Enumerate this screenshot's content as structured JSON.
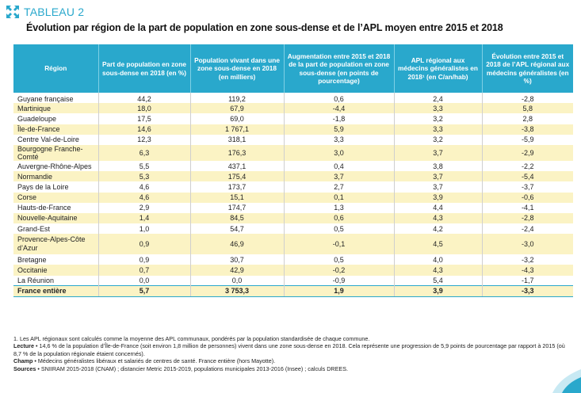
{
  "tag": {
    "label": "TABLEAU 2",
    "icon": "expand-arrows-icon",
    "accent_color": "#29a8cc"
  },
  "title": "Évolution par région de la part de population en zone sous-dense et de l’APL moyen entre 2015 et 2018",
  "table": {
    "headers": [
      "Région",
      "Part de population en zone sous-dense en 2018 (en %)",
      "Population vivant dans une zone sous-dense en 2018 (en milliers)",
      "Augmentation entre 2015 et 2018 de la part de population en zone sous-dense (en points de pourcentage)",
      "APL régional aux médecins généralistes en 2018¹ (en C/an/hab)",
      "Évolution entre 2015 et 2018 de l’APL régional aux médecins généralistes (en %)"
    ],
    "rows": [
      [
        "Guyane française",
        "44,2",
        "119,2",
        "0,6",
        "2,4",
        "-2,8"
      ],
      [
        "Martinique",
        "18,0",
        "67,9",
        "-4,4",
        "3,3",
        "5,8"
      ],
      [
        "Guadeloupe",
        "17,5",
        "69,0",
        "-1,8",
        "3,2",
        "2,8"
      ],
      [
        "Île-de-France",
        "14,6",
        "1 767,1",
        "5,9",
        "3,3",
        "-3,8"
      ],
      [
        "Centre Val-de-Loire",
        "12,3",
        "318,1",
        "3,3",
        "3,2",
        "-5,9"
      ],
      [
        "Bourgogne Franche-Comté",
        "6,3",
        "176,3",
        "3,0",
        "3,7",
        "-2,9"
      ],
      [
        "Auvergne-Rhône-Alpes",
        "5,5",
        "437,1",
        "0,4",
        "3,8",
        "-2,2"
      ],
      [
        "Normandie",
        "5,3",
        "175,4",
        "3,7",
        "3,7",
        "-5,4"
      ],
      [
        "Pays de la Loire",
        "4,6",
        "173,7",
        "2,7",
        "3,7",
        "-3,7"
      ],
      [
        "Corse",
        "4,6",
        "15,1",
        "0,1",
        "3,9",
        "-0,6"
      ],
      [
        "Hauts-de-France",
        "2,9",
        "174,7",
        "1,3",
        "4,4",
        "-4,1"
      ],
      [
        "Nouvelle-Aquitaine",
        "1,4",
        "84,5",
        "0,6",
        "4,3",
        "-2,8"
      ],
      [
        "Grand-Est",
        "1,0",
        "54,7",
        "0,5",
        "4,2",
        "-2,4"
      ],
      [
        "Provence-Alpes-Côte d’Azur",
        "0,9",
        "46,9",
        "-0,1",
        "4,5",
        "-3,0"
      ],
      [
        "Bretagne",
        "0,9",
        "30,7",
        "0,5",
        "4,0",
        "-3,2"
      ],
      [
        "Occitanie",
        "0,7",
        "42,9",
        "-0,2",
        "4,3",
        "-4,3"
      ],
      [
        "La Réunion",
        "0,0",
        "0,0",
        "-0,9",
        "5,4",
        "-1,7"
      ]
    ],
    "total": [
      "France entière",
      "5,7",
      "3 753,3",
      "1,9",
      "3,9",
      "-3,3"
    ]
  },
  "notes": {
    "footnote": "1. Les APL régionaux sont calculés comme la moyenne des APL communaux, pondérés par la population standardisée de chaque commune.",
    "lecture_label": "Lecture",
    "lecture_text": "14,6 % de la population d’Île-de-France (soit environ 1,8 million de personnes) vivent dans une zone sous-dense en 2018. Cela représente une progression de 5,9 points de pourcentage par rapport à 2015 (où 8,7 % de la population régionale étaient concernés).",
    "champ_label": "Champ",
    "champ_text": "Médecins généralistes libéraux et salariés de centres de santé. France entière (hors Mayotte).",
    "sources_label": "Sources",
    "sources_text": "SNIIRAM 2015-2018 (CNAM) ; distancier Metric 2015-2019, populations municipales 2013-2016 (Insee) ; calculs DREES."
  }
}
